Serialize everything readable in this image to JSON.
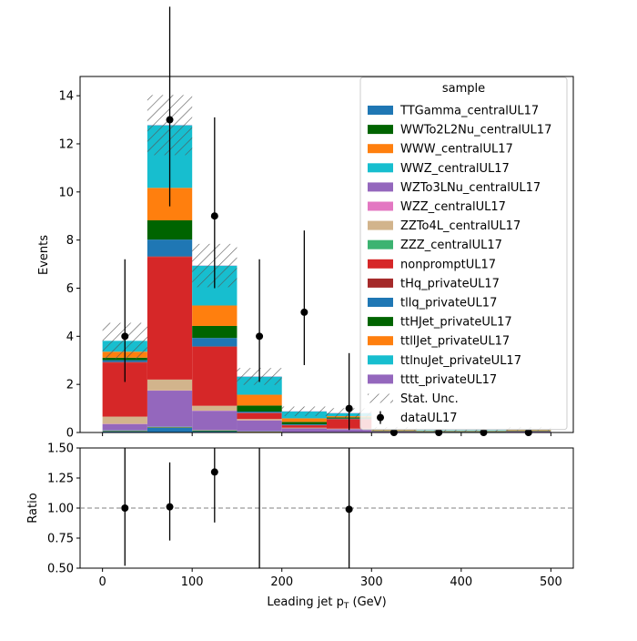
{
  "chart_data": [
    {
      "type": "bar",
      "stacked": true,
      "xlabel": "Leading jet  p",
      "xlabel_sub": "T",
      "xlabel_unit": " (GeV)",
      "ylabel": "Events",
      "xlim": [
        -25,
        525
      ],
      "ylim": [
        0,
        14.8
      ],
      "x_ticks": [
        0,
        100,
        200,
        300,
        400,
        500
      ],
      "y_ticks": [
        0,
        2,
        4,
        6,
        8,
        10,
        12,
        14
      ],
      "bin_edges": [
        0,
        50,
        100,
        150,
        200,
        250,
        300,
        350,
        400,
        450,
        500
      ],
      "series": [
        {
          "name": "TTGamma_centralUL17",
          "color": "#1f77b4",
          "values": [
            0.05,
            0.2,
            0.05,
            0.02,
            0.01,
            0.01,
            0,
            0,
            0,
            0
          ]
        },
        {
          "name": "WWTo2L2Nu_centralUL17",
          "color": "#006400",
          "values": [
            0.02,
            0.02,
            0.03,
            0.01,
            0.01,
            0.01,
            0,
            0,
            0,
            0
          ]
        },
        {
          "name": "WWW_centralUL17",
          "color": "#ff7f0e",
          "values": [
            0.01,
            0.01,
            0.01,
            0.01,
            0,
            0,
            0,
            0,
            0,
            0
          ]
        },
        {
          "name": "WWZ_centralUL17",
          "color": "#17becf",
          "values": [
            0.01,
            0.01,
            0.01,
            0.01,
            0,
            0,
            0,
            0,
            0,
            0
          ]
        },
        {
          "name": "WZTo3LNu_centralUL17",
          "color": "#9467bd",
          "values": [
            0.26,
            1.5,
            0.8,
            0.45,
            0.15,
            0.12,
            0.05,
            0.03,
            0.03,
            0.05
          ]
        },
        {
          "name": "WZZ_centralUL17",
          "color": "#e377c2",
          "values": [
            0.01,
            0.01,
            0.01,
            0.01,
            0,
            0,
            0,
            0,
            0,
            0
          ]
        },
        {
          "name": "ZZTo4L_centralUL17",
          "color": "#d2b48c",
          "values": [
            0.3,
            0.45,
            0.2,
            0.05,
            0.03,
            0.02,
            0,
            0,
            0,
            0
          ]
        },
        {
          "name": "ZZZ_centralUL17",
          "color": "#3cb371",
          "values": [
            0,
            0,
            0,
            0,
            0,
            0,
            0,
            0,
            0,
            0
          ]
        },
        {
          "name": "nonpromptUL17",
          "color": "#d62728",
          "values": [
            2.25,
            5.1,
            2.45,
            0.25,
            0.1,
            0.4,
            0,
            0,
            0,
            0
          ]
        },
        {
          "name": "tHq_privateUL17",
          "color": "#a52a2a",
          "values": [
            0.02,
            0.02,
            0.02,
            0.01,
            0.01,
            0,
            0,
            0,
            0,
            0
          ]
        },
        {
          "name": "tllq_privateUL17",
          "color": "#1f77b4",
          "values": [
            0.08,
            0.7,
            0.35,
            0.05,
            0.03,
            0.02,
            0,
            0,
            0,
            0
          ]
        },
        {
          "name": "ttHJet_privateUL17",
          "color": "#006400",
          "values": [
            0.1,
            0.8,
            0.5,
            0.25,
            0.1,
            0.05,
            0.02,
            0.01,
            0.01,
            0.02
          ]
        },
        {
          "name": "ttllJet_privateUL17",
          "color": "#ff7f0e",
          "values": [
            0.25,
            1.35,
            0.85,
            0.45,
            0.15,
            0.05,
            0.03,
            0.02,
            0.02,
            0.03
          ]
        },
        {
          "name": "ttlnuJet_privateUL17",
          "color": "#17becf",
          "values": [
            0.45,
            2.6,
            1.65,
            0.75,
            0.28,
            0.12,
            0.05,
            0.03,
            0.03,
            0.05
          ]
        },
        {
          "name": "tttt_privateUL17",
          "color": "#9467bd",
          "values": [
            0,
            0.01,
            0.01,
            0.01,
            0.01,
            0.01,
            0,
            0,
            0,
            0
          ]
        }
      ],
      "stat_unc": {
        "name": "Stat. Unc.",
        "values": [
          0.75,
          1.25,
          0.9,
          0.35,
          0.2,
          0.2,
          0.08,
          0.05,
          0.05,
          0.08
        ]
      },
      "data": {
        "name": "dataUL17",
        "x": [
          25,
          75,
          125,
          175,
          225,
          275,
          325,
          375,
          425,
          475
        ],
        "y": [
          4,
          13,
          9,
          4,
          5,
          1,
          0,
          0,
          0,
          0
        ],
        "yerr_low": [
          1.9,
          3.6,
          3.0,
          1.9,
          2.2,
          0.9,
          0,
          0,
          0,
          0
        ],
        "yerr_high": [
          3.2,
          4.7,
          4.1,
          3.2,
          3.4,
          2.3,
          0,
          0,
          0,
          0
        ]
      },
      "legend": {
        "title": "sample",
        "placement": "top-right"
      }
    },
    {
      "type": "scatter",
      "ylabel": "Ratio",
      "xlabel": "Leading jet  p",
      "xlim": [
        -25,
        525
      ],
      "ylim": [
        0.5,
        1.5
      ],
      "y_ticks": [
        "0.50",
        "0.75",
        "1.00",
        "1.25",
        "1.50"
      ],
      "x_ticks": [
        0,
        100,
        200,
        300,
        400,
        500
      ],
      "reference_line": 1.0,
      "x": [
        25,
        75,
        125,
        175,
        275
      ],
      "y": [
        1.0,
        1.01,
        1.3,
        null,
        0.99
      ],
      "yerr_low": [
        0.48,
        0.28,
        0.42,
        1.2,
        1.0
      ],
      "yerr_high": [
        0.85,
        0.37,
        0.6,
        1.2,
        2.3
      ]
    }
  ]
}
